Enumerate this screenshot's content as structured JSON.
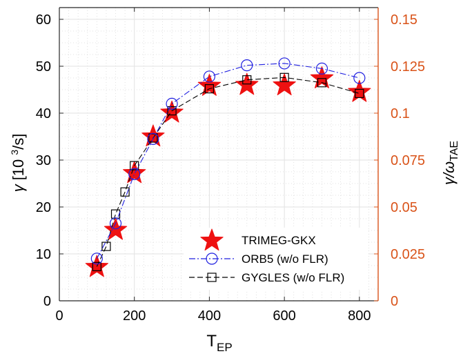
{
  "chart_data": {
    "type": "line",
    "xlabel": {
      "main": "T",
      "sub": "EP"
    },
    "ylabel_left": {
      "gamma": "γ",
      "rest": " [10 ",
      "sup": "3",
      "tail": "/s]"
    },
    "ylabel_right": {
      "gamma": "γ/ω",
      "sub": "TAE"
    },
    "xlim": [
      0,
      850
    ],
    "ylim_left": [
      0,
      62.5
    ],
    "ylim_right": [
      0,
      0.15625
    ],
    "x_ticks": [
      "0",
      "200",
      "400",
      "600",
      "800"
    ],
    "y_ticks_left": [
      "0",
      "10",
      "20",
      "30",
      "40",
      "50",
      "60"
    ],
    "y_ticks_right": [
      "0",
      "0.025",
      "0.05",
      "0.075",
      "0.1",
      "0.125",
      "0.15"
    ],
    "grid": true,
    "legend_position": "bottom-center",
    "colors": {
      "right_axis": "#d95319",
      "trimeg": "#ee1111",
      "orb5": "#1f1fe0",
      "gygles": "#000000"
    },
    "series": [
      {
        "name": "TRIMEG-GKX",
        "marker": "star",
        "x": [
          100,
          150,
          200,
          250,
          300,
          400,
          500,
          600,
          700,
          800
        ],
        "y": [
          7.2,
          15.1,
          27.2,
          35.0,
          40.1,
          45.8,
          46.0,
          45.9,
          47.4,
          44.5
        ]
      },
      {
        "name": "ORB5 (w/o FLR)",
        "marker": "circle",
        "line": "dash-dot",
        "x": [
          100,
          150,
          200,
          250,
          300,
          400,
          500,
          600,
          700,
          800
        ],
        "y": [
          9.0,
          16.5,
          27.0,
          34.5,
          42.0,
          47.8,
          50.2,
          50.6,
          49.5,
          47.5
        ]
      },
      {
        "name": "GYGLES (w/o FLR)",
        "marker": "square",
        "line": "dash",
        "x": [
          100,
          125,
          150,
          175,
          200,
          250,
          300,
          400,
          500,
          600,
          700,
          800
        ],
        "y": [
          7.3,
          11.6,
          18.5,
          23.2,
          28.8,
          34.7,
          40.5,
          45.2,
          47.1,
          47.6,
          46.5,
          44.2
        ]
      }
    ]
  }
}
